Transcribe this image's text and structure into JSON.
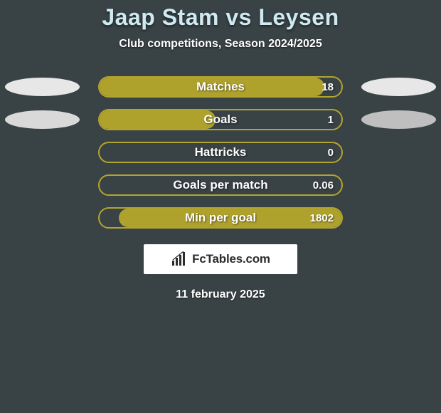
{
  "title": "Jaap Stam vs Leysen",
  "subtitle": "Club competitions, Season 2024/2025",
  "date_text": "11 february 2025",
  "brand": {
    "text": "FcTables.com"
  },
  "colors": {
    "background": "#394245",
    "title": "#cfeaf1",
    "text": "#ffffff",
    "avatar_left": "#e7e7e7",
    "avatar_right": "#e7e7e7",
    "avatar_left_2": "#d9d9d9",
    "avatar_right_2": "#bfbfbf",
    "bar_border": "#b2a52e",
    "bar_fill": "#afa22c",
    "brand_bg": "#ffffff",
    "brand_text": "#2c2c2c"
  },
  "stats": [
    {
      "label": "Matches",
      "value": "18",
      "fill_pct": 93,
      "fill_side": "left",
      "show_avatars": true
    },
    {
      "label": "Goals",
      "value": "1",
      "fill_pct": 48,
      "fill_side": "left",
      "show_avatars": true
    },
    {
      "label": "Hattricks",
      "value": "0",
      "fill_pct": 0,
      "fill_side": "left",
      "show_avatars": false
    },
    {
      "label": "Goals per match",
      "value": "0.06",
      "fill_pct": 0,
      "fill_side": "left",
      "show_avatars": false
    },
    {
      "label": "Min per goal",
      "value": "1802",
      "fill_pct": 92,
      "fill_side": "right",
      "show_avatars": false
    }
  ]
}
